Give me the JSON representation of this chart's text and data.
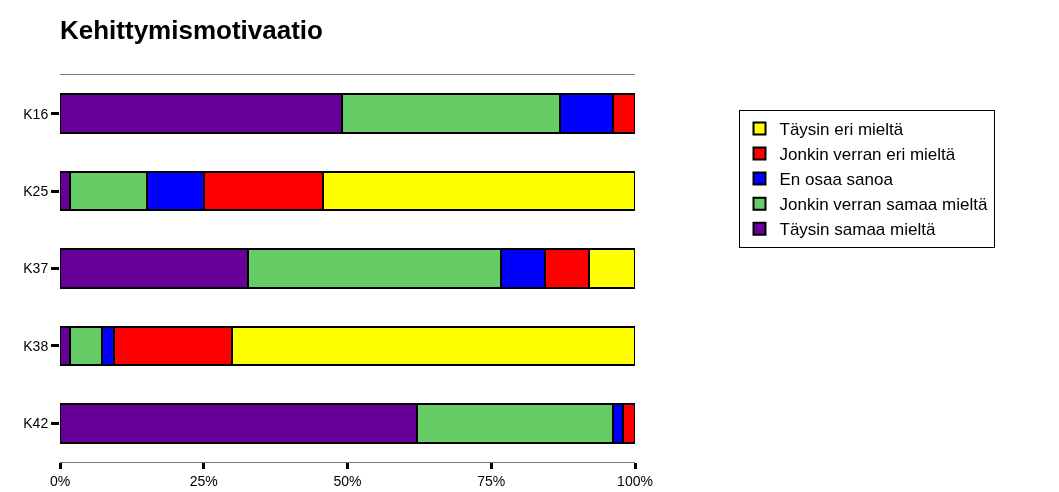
{
  "chart_data": {
    "type": "bar",
    "title": "Kehittymismotivaatio",
    "orientation": "horizontal",
    "stacked": true,
    "categories": [
      "K16",
      "K25",
      "K37",
      "K38",
      "K42"
    ],
    "series": [
      {
        "name": "Täysin samaa mieltä",
        "color": "#660099",
        "values": [
          49.0,
          1.7,
          32.7,
          1.8,
          62.1
        ]
      },
      {
        "name": "Jonkin verran samaa mieltä",
        "color": "#66cc66",
        "values": [
          38.0,
          13.5,
          44.0,
          5.5,
          34.0
        ]
      },
      {
        "name": "En osaa sanoa",
        "color": "#0000ff",
        "values": [
          9.2,
          9.9,
          7.7,
          2.1,
          1.8
        ]
      },
      {
        "name": "Jonkin verran eri mieltä",
        "color": "#ff0000",
        "values": [
          3.8,
          20.7,
          7.6,
          20.5,
          2.1
        ]
      },
      {
        "name": "Täysin eri mieltä",
        "color": "#ffff00",
        "values": [
          null,
          54.2,
          8.0,
          70.1,
          null
        ]
      }
    ],
    "xlim": [
      0,
      100
    ],
    "xticks": [
      {
        "value": 0,
        "label": "0%"
      },
      {
        "value": 25,
        "label": "25%"
      },
      {
        "value": 50,
        "label": "50%"
      },
      {
        "value": 75,
        "label": "75%"
      },
      {
        "value": 100,
        "label": "100%"
      }
    ],
    "grid": false,
    "legend": "top right"
  }
}
